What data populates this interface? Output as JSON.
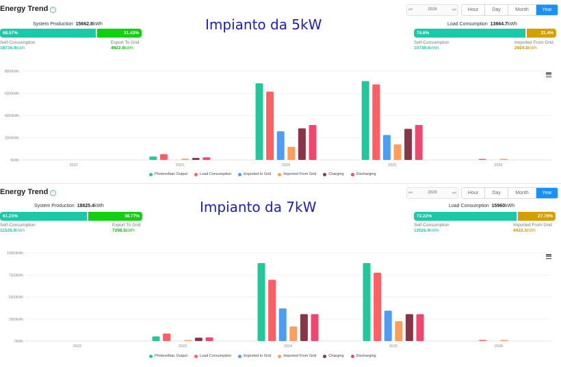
{
  "colors": {
    "self": "#1bc8a8",
    "export": "#0fd10f",
    "imported": "#d4a000",
    "pv": "#21c89a",
    "load": "#ff5f63",
    "exported": "#4e9df5",
    "importedGrid": "#ff9e58",
    "charging": "#8b3448",
    "discharging": "#f2466f",
    "active_tab": "#1890ff"
  },
  "panels": [
    {
      "title": "Energy Trend",
      "overlay_label": "Impianto da 5kW",
      "year_value": "2026",
      "tabs": [
        "Hour",
        "Day",
        "Month",
        "Year"
      ],
      "active_tab": "Year",
      "production": {
        "label": "System Production",
        "value": "15662.8",
        "unit": "kWh",
        "self_pct_text": "68.57%",
        "export_pct_text": "31.43%",
        "self_pct": 68.57,
        "export_pct": 31.43,
        "self_label": "Self-Consumption",
        "self_value": "10739.9",
        "self_unit": "kWh",
        "export_label": "Export To Grid",
        "export_value": "4922.9",
        "export_unit": "kWh"
      },
      "load": {
        "label": "Load Consumption",
        "value": "13664.7",
        "unit": "kWh",
        "self_pct_text": "78.6%",
        "import_pct_text": "21.4%",
        "self_pct": 78.6,
        "import_pct": 21.4,
        "self_label": "Self-Consumption",
        "self_value": "10739.9",
        "self_unit": "kWh",
        "import_label": "Imported From Grid",
        "import_value": "2924.8",
        "import_unit": "kWh"
      },
      "chart_data": {
        "type": "bar",
        "categories": [
          "2022",
          "2023",
          "2024",
          "2025",
          "2026"
        ],
        "yticks": [
          "0kWh",
          "2000kWh",
          "4000kWh",
          "6000kWh",
          "8000kWh"
        ],
        "ylim": [
          0,
          8000
        ],
        "series": [
          {
            "name": "Photovoltaic Output",
            "color": "#21c89a",
            "values": [
              0,
              300,
              6900,
              7100,
              0
            ]
          },
          {
            "name": "Load Consumption",
            "color": "#ff5f63",
            "values": [
              0,
              520,
              6150,
              6800,
              60
            ]
          },
          {
            "name": "Exported to Grid",
            "color": "#4e9df5",
            "values": [
              0,
              0,
              2580,
              2250,
              0
            ]
          },
          {
            "name": "Imported From Grid",
            "color": "#ff9e58",
            "values": [
              0,
              110,
              1180,
              1400,
              40
            ]
          },
          {
            "name": "Charging",
            "color": "#8b3448",
            "values": [
              0,
              180,
              2850,
              2800,
              0
            ]
          },
          {
            "name": "Discharging",
            "color": "#f2466f",
            "values": [
              0,
              230,
              3150,
              3150,
              0
            ]
          }
        ]
      }
    },
    {
      "title": "Energy Trend",
      "overlay_label": "Impianto da 7kW",
      "year_value": "2026",
      "tabs": [
        "Hour",
        "Day",
        "Month",
        "Year"
      ],
      "active_tab": "Year",
      "production": {
        "label": "System Production",
        "value": "18825.4",
        "unit": "kWh",
        "self_pct_text": "61.23%",
        "export_pct_text": "38.77%",
        "self_pct": 61.23,
        "export_pct": 38.77,
        "self_label": "Self-Consumption",
        "self_value": "11526.9",
        "self_unit": "kWh",
        "export_label": "Export To Grid",
        "export_value": "7298.5",
        "export_unit": "kWh"
      },
      "load": {
        "label": "Load Consumption",
        "value": "15960",
        "unit": "kWh",
        "self_pct_text": "72.22%",
        "import_pct_text": "27.78%",
        "self_pct": 72.22,
        "import_pct": 27.78,
        "self_label": "Self-Consumption",
        "self_value": "11526.9",
        "self_unit": "kWh",
        "import_label": "Imported From Grid",
        "import_value": "4433.1",
        "import_unit": "kWh"
      },
      "chart_data": {
        "type": "bar",
        "categories": [
          "2022",
          "2023",
          "2024",
          "2025",
          "2026"
        ],
        "yticks": [
          "0kWh",
          "2500kWh",
          "5000kWh",
          "7500kWh",
          "10000kWh"
        ],
        "ylim": [
          0,
          10000
        ],
        "series": [
          {
            "name": "Photovoltaic Output",
            "color": "#21c89a",
            "values": [
              0,
              520,
              8850,
              8850,
              0
            ]
          },
          {
            "name": "Load Consumption",
            "color": "#ff5f63",
            "values": [
              0,
              850,
              6950,
              7750,
              70
            ]
          },
          {
            "name": "Exported to Grid",
            "color": "#4e9df5",
            "values": [
              0,
              0,
              3700,
              3450,
              0
            ]
          },
          {
            "name": "Imported From Grid",
            "color": "#ff9e58",
            "values": [
              0,
              120,
              1650,
              2250,
              50
            ]
          },
          {
            "name": "Charging",
            "color": "#8b3448",
            "values": [
              0,
              380,
              3050,
              3050,
              0
            ]
          },
          {
            "name": "Discharging",
            "color": "#f2466f",
            "values": [
              0,
              420,
              3050,
              3050,
              0
            ]
          }
        ]
      }
    }
  ]
}
